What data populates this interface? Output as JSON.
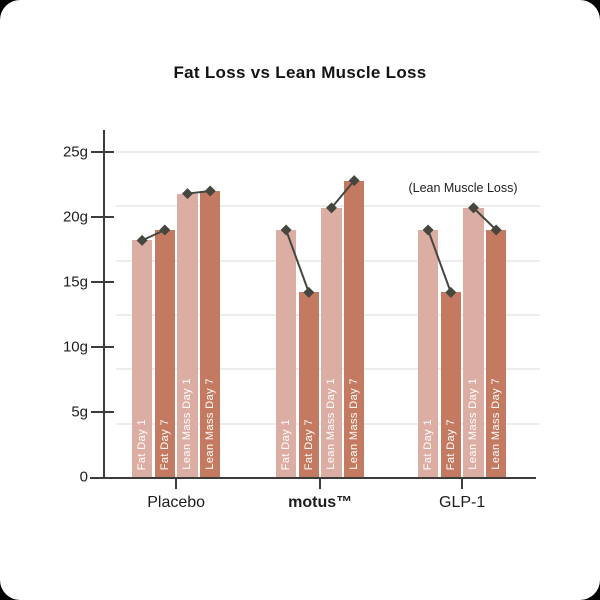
{
  "title": "Fat Loss vs Lean Muscle Loss",
  "chart_data": {
    "type": "bar",
    "title": "Fat Loss vs Lean Muscle Loss",
    "annotation": "(Lean Muscle Loss)",
    "xlabel": "",
    "ylabel": "",
    "unit": "g",
    "ylim": [
      0,
      26.7
    ],
    "grid": "on",
    "legend_position": "none",
    "categories": [
      {
        "label": "Placebo",
        "emphasis": false
      },
      {
        "label": "motus™",
        "emphasis": true
      },
      {
        "label": "GLP-1",
        "emphasis": false
      }
    ],
    "series": [
      {
        "name": "Fat Day 1",
        "values": [
          18.2,
          19.0,
          19.0
        ],
        "color": "#DCAEA3"
      },
      {
        "name": "Fat Day 7",
        "values": [
          19.0,
          14.2,
          14.2
        ],
        "color": "#C47A61"
      },
      {
        "name": "Lean Mass Day 1",
        "values": [
          21.8,
          20.7,
          20.7
        ],
        "color": "#DCAEA3"
      },
      {
        "name": "Lean Mass Day 7",
        "values": [
          22.0,
          22.8,
          19.0
        ],
        "color": "#C47A61"
      }
    ],
    "connector_pairs": [
      [
        0,
        1
      ],
      [
        2,
        3
      ]
    ],
    "yticks": [
      {
        "value": 25,
        "label": "25g"
      },
      {
        "value": 20,
        "label": "20g"
      },
      {
        "value": 15,
        "label": "15g"
      },
      {
        "value": 10,
        "label": "10g"
      },
      {
        "value": 5,
        "label": "5g"
      },
      {
        "value": 0,
        "label": "0"
      }
    ],
    "gridline_count": 6
  },
  "colors": {
    "bar_light": "#DCAEA3",
    "bar_dark": "#C47A61",
    "marker_line": "#45473F",
    "axis": "#3C3C3C",
    "gridline": "#EDEDE9",
    "text": "#1D1D1D",
    "card_background": "#FFFFFF",
    "page_background": "#000000"
  }
}
